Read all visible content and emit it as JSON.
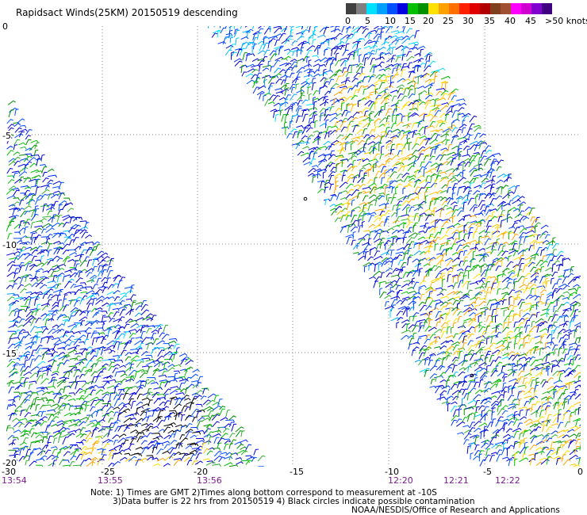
{
  "title": "Rapidsact Winds(25KM) 20150519 descending",
  "legend": {
    "colors": [
      "#404040",
      "#808080",
      "#00e0ff",
      "#00a0ff",
      "#0050ff",
      "#0000e0",
      "#00c000",
      "#009000",
      "#ffe000",
      "#ffa000",
      "#ff7000",
      "#ff2000",
      "#e00000",
      "#b00000",
      "#804020",
      "#a05030",
      "#ff00ff",
      "#d000d0",
      "#8000d0",
      "#400080"
    ],
    "labels": [
      "0",
      "5",
      "10",
      "15",
      "20",
      "25",
      "30",
      "35",
      "40",
      "45",
      ">50 knots"
    ]
  },
  "axes": {
    "x_ticks": [
      "-30",
      "-25",
      "-20",
      "-15",
      "-10",
      "-5",
      "0"
    ],
    "y_ticks": [
      "0",
      "-5",
      "-10",
      "-15",
      "-20"
    ]
  },
  "times": [
    "13:54",
    "13:55",
    "13:56",
    "12:20",
    "12:21",
    "12:22"
  ],
  "notes": {
    "line1": "Note: 1) Times are GMT 2)Times along bottom correspond to measurement at -10S",
    "line2": "3)Data buffer is 22 hrs from 20150519 4) Black circles indicate possible contamination",
    "credit": "NOAA/NESDIS/Office of Research and Applications"
  }
}
